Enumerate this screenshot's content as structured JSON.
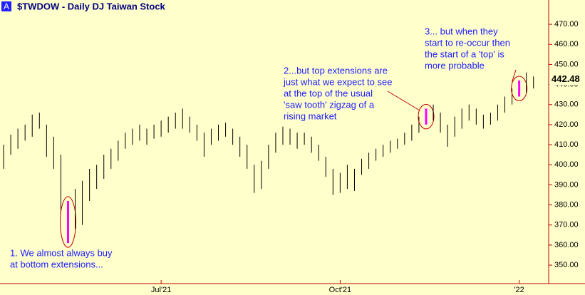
{
  "chart_data": {
    "type": "hlc",
    "badge": "A",
    "title": "$TWDOW - Daily  DJ Taiwan Stock",
    "categories": [
      null,
      null,
      null,
      null,
      null,
      null,
      null,
      null,
      null,
      null,
      null,
      null,
      null,
      null,
      null,
      null,
      null,
      null,
      null,
      null,
      null,
      null,
      "Jul'21",
      null,
      null,
      null,
      null,
      null,
      null,
      null,
      null,
      null,
      null,
      null,
      null,
      null,
      null,
      null,
      null,
      null,
      null,
      null,
      null,
      null,
      null,
      null,
      null,
      "Oct'21",
      null,
      null,
      null,
      null,
      null,
      null,
      null,
      null,
      null,
      null,
      null,
      null,
      null,
      null,
      null,
      null,
      null,
      null,
      null,
      null,
      null,
      null,
      null,
      null,
      "'22",
      null,
      null
    ],
    "highs": [
      410,
      415,
      418,
      420,
      425,
      426,
      420,
      414,
      405,
      382,
      388,
      392,
      398,
      400,
      405,
      408,
      412,
      416,
      418,
      420,
      418,
      420,
      422,
      424,
      426,
      428,
      424,
      420,
      416,
      418,
      420,
      421,
      418,
      414,
      410,
      400,
      402,
      410,
      416,
      419,
      418,
      416,
      416,
      414,
      410,
      404,
      398,
      396,
      400,
      398,
      403,
      406,
      408,
      410,
      412,
      413,
      416,
      420,
      424,
      428,
      430,
      426,
      420,
      424,
      428,
      430,
      428,
      425,
      426,
      430,
      434,
      438,
      442,
      446,
      444
    ],
    "lows": [
      398,
      405,
      408,
      412,
      414,
      418,
      404,
      398,
      376,
      361,
      368,
      370,
      382,
      388,
      393,
      398,
      402,
      408,
      410,
      412,
      410,
      413,
      414,
      416,
      418,
      418,
      416,
      412,
      404,
      410,
      412,
      414,
      410,
      404,
      398,
      386,
      388,
      398,
      406,
      410,
      410,
      408,
      410,
      406,
      402,
      394,
      385,
      386,
      388,
      387,
      395,
      398,
      402,
      404,
      406,
      408,
      410,
      412,
      416,
      420,
      422,
      416,
      409,
      414,
      418,
      422,
      420,
      418,
      420,
      422,
      426,
      430,
      434,
      436,
      438
    ],
    "color": "#000000",
    "highlight_color": "#ff00ff",
    "highlights": [
      9,
      59,
      72
    ],
    "last": {
      "value": 442.48,
      "label": "442.48"
    },
    "ylim": [
      340.8,
      482.1
    ],
    "yticks": [
      {
        "value": 350,
        "label": "350.00"
      },
      {
        "value": 360,
        "label": "360.00"
      },
      {
        "value": 370,
        "label": "370.00"
      },
      {
        "value": 380,
        "label": "380.00"
      },
      {
        "value": 390,
        "label": "390.00"
      },
      {
        "value": 400,
        "label": "400.00"
      },
      {
        "value": 410,
        "label": "410.00"
      },
      {
        "value": 420,
        "label": "420.00"
      },
      {
        "value": 430,
        "label": "430.00"
      },
      {
        "value": 440,
        "label": "440.00"
      },
      {
        "value": 450,
        "label": "450.00"
      },
      {
        "value": 460,
        "label": "460.00"
      },
      {
        "value": 470,
        "label": "470.00"
      }
    ],
    "annotations": [
      {
        "lines": [
          "1. We almost always buy",
          "at bottom extensions..."
        ]
      },
      {
        "lines": [
          "2...but top extensions are",
          "just what we expect to see",
          "at the top of the usual",
          "'saw tooth' zigzag of a",
          "rising market"
        ]
      },
      {
        "lines": [
          "3... but when they",
          "start to re-occur then",
          "the start of a 'top' is",
          "more probable"
        ]
      }
    ]
  }
}
